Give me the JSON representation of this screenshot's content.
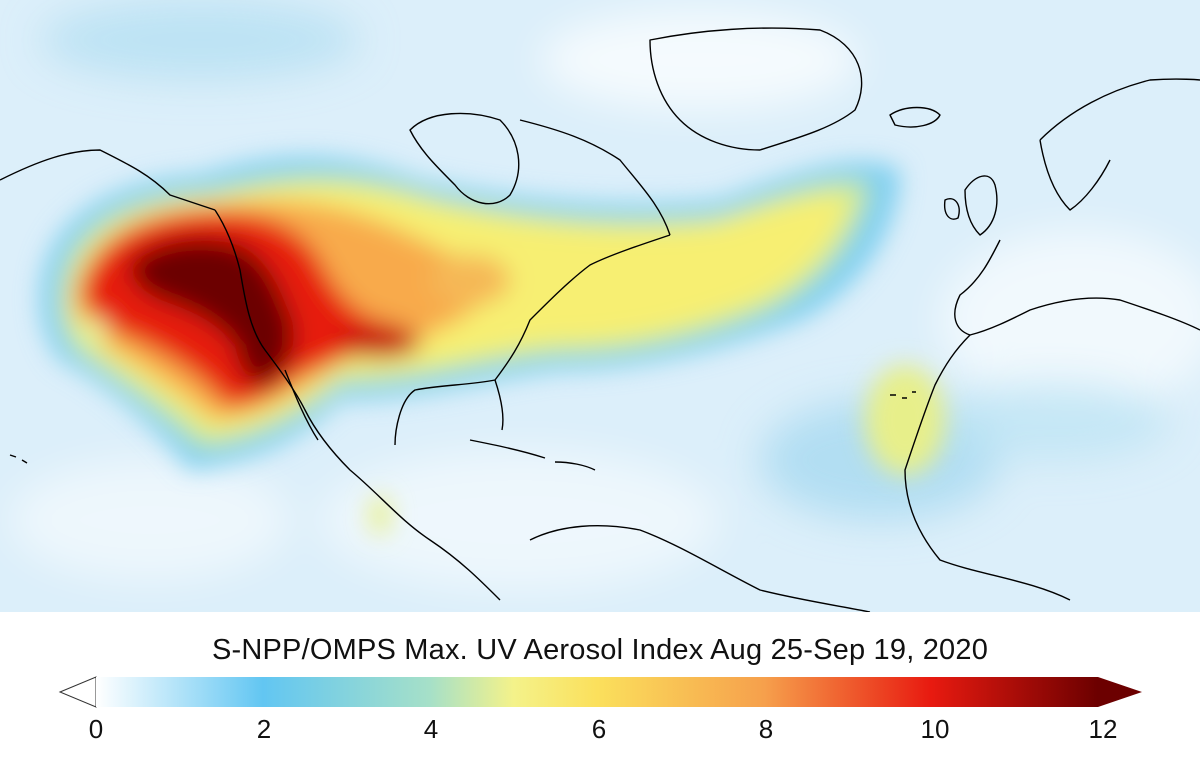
{
  "title": "S-NPP/OMPS Max. UV Aerosol Index Aug 25-Sep 19, 2020",
  "colorbar": {
    "min": 0,
    "max": 12,
    "ticks": [
      "0",
      "2",
      "4",
      "6",
      "8",
      "10",
      "12"
    ],
    "colors": {
      "v0": "#ffffff",
      "v2": "#62c6f2",
      "v4": "#a6e0c8",
      "v5": "#f4f28a",
      "v6": "#fbe05c",
      "v8": "#f6a04c",
      "v10": "#e81a10",
      "v12": "#6c0000"
    }
  },
  "map": {
    "background_color": "#dceffa",
    "coastline_color": "#000000"
  }
}
